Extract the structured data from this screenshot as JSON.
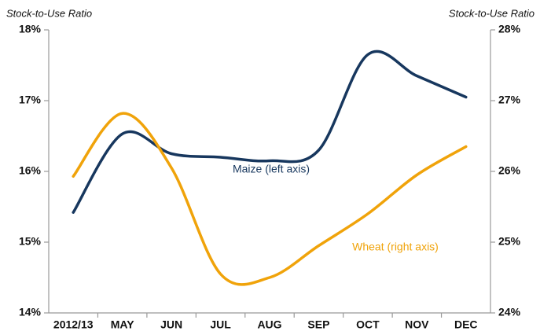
{
  "chart_data": {
    "type": "line",
    "ylabel": "Stock-to-Use Ratio",
    "y2label": "Stock-to-Use Ratio",
    "categories": [
      "2012/13",
      "MAY",
      "JUN",
      "JUL",
      "AUG",
      "SEP",
      "OCT",
      "NOV",
      "DEC"
    ],
    "series": [
      {
        "name": "Maize (left axis)",
        "color": "#17375e",
        "values": [
          15.42,
          16.53,
          16.25,
          16.2,
          16.15,
          16.3,
          17.65,
          17.35,
          17.05
        ]
      },
      {
        "name": "Wheat (right axis)",
        "color": "#f0a30a",
        "axis": "y2",
        "values": [
          25.93,
          26.82,
          26.05,
          24.55,
          24.5,
          24.95,
          25.4,
          25.95,
          26.35
        ]
      }
    ],
    "ylim": [
      14,
      18
    ],
    "yticks": [
      {
        "value": 14,
        "label": "14%"
      },
      {
        "value": 15,
        "label": "15%"
      },
      {
        "value": 16,
        "label": "16%"
      },
      {
        "value": 17,
        "label": "17%"
      },
      {
        "value": 18,
        "label": "18%"
      }
    ],
    "y2lim": [
      24,
      28
    ],
    "y2ticks": [
      {
        "value": 24,
        "label": "24%"
      },
      {
        "value": 25,
        "label": "25%"
      },
      {
        "value": 26,
        "label": "26%"
      },
      {
        "value": 27,
        "label": "27%"
      },
      {
        "value": 28,
        "label": "28%"
      }
    ]
  }
}
